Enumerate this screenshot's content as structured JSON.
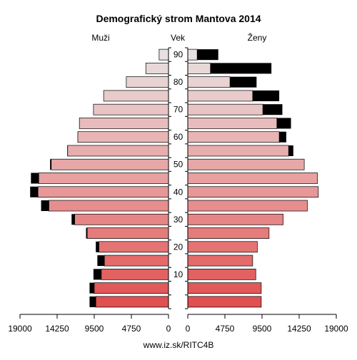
{
  "chart_data": {
    "type": "bar",
    "subtype": "population-pyramid",
    "title": "Demografický strom Mantova 2014",
    "left_label": "Muži",
    "center_label": "Vek",
    "right_label": "Ženy",
    "footer": "www.iz.sk/RITC4B",
    "x_ticks_left": [
      "19000",
      "14250",
      "9500",
      "4750",
      "0"
    ],
    "x_ticks_right": [
      "0",
      "4750",
      "9500",
      "14250",
      "19000"
    ],
    "x_max": 19000,
    "age_ticks": [
      "10",
      "20",
      "30",
      "40",
      "50",
      "60",
      "70",
      "80",
      "90"
    ],
    "categories": [
      "0-4",
      "5-9",
      "10-14",
      "15-19",
      "20-24",
      "25-29",
      "30-34",
      "35-39",
      "40-44",
      "45-49",
      "50-54",
      "55-59",
      "60-64",
      "65-69",
      "70-74",
      "75-79",
      "80-84",
      "85-89",
      "90+"
    ],
    "series": [
      {
        "name": "Muži",
        "values": [
          9300,
          9500,
          8600,
          8200,
          8900,
          10400,
          12000,
          15300,
          16700,
          16600,
          15000,
          12900,
          11600,
          11400,
          9600,
          8300,
          5400,
          2900,
          1200
        ]
      },
      {
        "name": "Muži",
        "values": [
          800,
          600,
          1000,
          900,
          400,
          150,
          400,
          1000,
          1000,
          1000,
          150,
          50,
          20,
          20,
          10,
          0,
          0,
          0,
          0
        ]
      },
      {
        "name": "Ženy",
        "values": [
          9400,
          9400,
          8700,
          8300,
          8900,
          10400,
          12200,
          15300,
          16700,
          16600,
          14900,
          12900,
          11700,
          11400,
          9600,
          8300,
          5400,
          2900,
          1200
        ]
      },
      {
        "name": "Ženy",
        "values": [
          0,
          0,
          0,
          0,
          0,
          0,
          0,
          0,
          0,
          0,
          0,
          600,
          900,
          1800,
          2500,
          3400,
          3400,
          7800,
          2700
        ]
      }
    ],
    "colors": {
      "excess": "#000000",
      "outline": "#000000",
      "young": "#e05050",
      "mid": "#e8a0a0",
      "old": "#e8e0e0"
    },
    "legend": "none",
    "grid": false
  }
}
